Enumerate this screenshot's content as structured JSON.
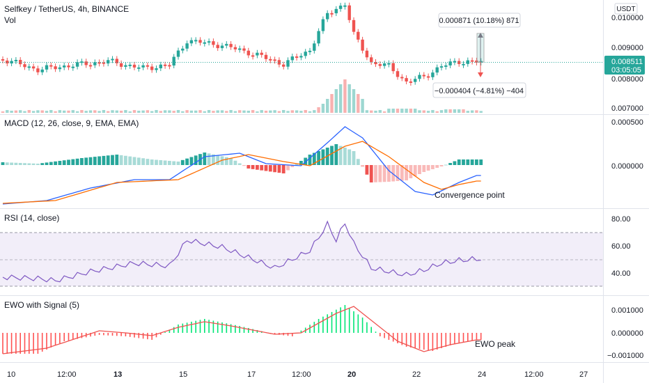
{
  "header": {
    "symbol_line": "Selfkey / TetherUS, 4h, BINANCE",
    "vol_label": "Vol",
    "currency_badge": "USDT"
  },
  "price_axis": {
    "ticks": [
      "0.010000",
      "0.009000",
      "0.008000",
      "0.007000"
    ],
    "last_price": "0.008511",
    "countdown": "03:05:05"
  },
  "measure_tool": {
    "up_label": "0.000871 (10.18%) 871",
    "down_label": "−0.000404 (−4.81%) −404"
  },
  "panes": {
    "macd": {
      "title": "MACD (12, 26, close, 9, EMA, EMA)",
      "ticks": [
        "0.000500",
        "0.000000"
      ],
      "annotation": "Convergence point"
    },
    "rsi": {
      "title": "RSI (14, close)",
      "ticks": [
        "80.00",
        "60.00",
        "40.00"
      ]
    },
    "ewo": {
      "title": "EWO with Signal (5)",
      "ticks": [
        "0.001000",
        "0.000000",
        "−0.001000"
      ],
      "annotation": "EWO peak"
    }
  },
  "time_axis": {
    "labels": [
      "10",
      "12:00",
      "13",
      "15",
      "17",
      "12:00",
      "20",
      "22",
      "24",
      "12:00",
      "27"
    ],
    "bold": [
      false,
      false,
      true,
      false,
      false,
      false,
      true,
      false,
      false,
      false,
      false
    ]
  },
  "colors": {
    "up": "#26a69a",
    "down": "#ef5350",
    "macd_line": "#2962ff",
    "signal_line": "#ff6d00",
    "rsi_line": "#7e57c2",
    "ewo_up": "#00e676",
    "ewo_down": "#ff5252",
    "ewo_signal": "#ef5350"
  }
}
